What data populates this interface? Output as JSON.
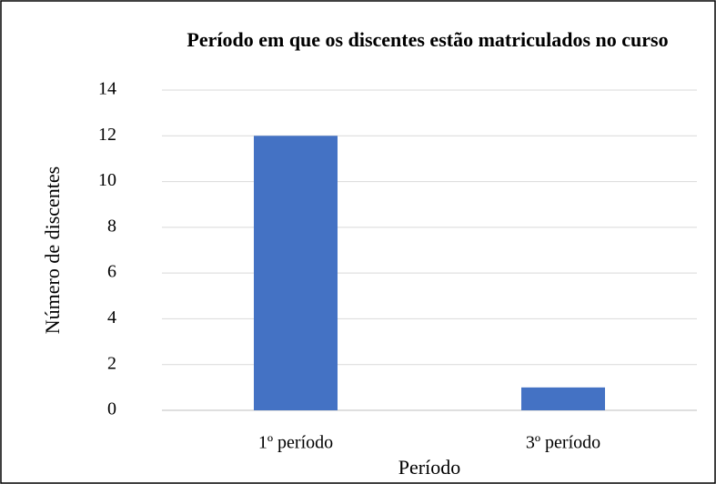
{
  "chart_data": {
    "type": "bar",
    "title": "Período em que os discentes estão matriculados no curso",
    "x_label": "Período",
    "y_label": "Número de discentes",
    "categories": [
      "1º período",
      "3º período"
    ],
    "values": [
      12,
      1
    ],
    "color": "#4472c4",
    "ylim": [
      0,
      14
    ],
    "yticks": [
      0,
      2,
      4,
      6,
      8,
      10,
      12,
      14
    ],
    "grid": true
  }
}
